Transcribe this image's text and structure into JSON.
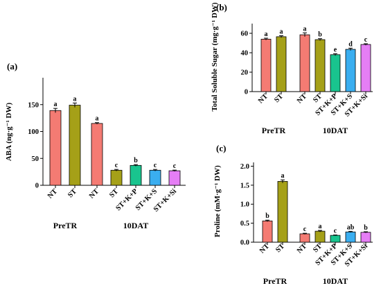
{
  "chart_data": [
    {
      "type": "bar",
      "panel": "(a)",
      "ylabel": "ABA (ng·g⁻¹ DW)",
      "ylim": [
        0,
        200
      ],
      "yticks": [
        0,
        50,
        100,
        150
      ],
      "categories": [
        "NT",
        "ST",
        "NT",
        "ST",
        "ST+K+P",
        "ST+K+S",
        "ST+K+Si"
      ],
      "values": [
        139,
        149,
        115,
        28,
        37,
        28,
        27
      ],
      "errors": [
        4,
        4,
        1.5,
        1.5,
        1.5,
        1.5,
        1.2
      ],
      "letters": [
        "a",
        "a",
        "a",
        "c",
        "b",
        "c",
        "c"
      ],
      "colors": [
        "#f47b73",
        "#a5a018",
        "#f47b73",
        "#a5a018",
        "#19c48e",
        "#3aaef0",
        "#e57ef5"
      ],
      "groups": [
        {
          "label": "PreTR",
          "indices": [
            0,
            1
          ]
        },
        {
          "label": "10DAT",
          "indices": [
            2,
            3,
            4,
            5,
            6
          ]
        }
      ]
    },
    {
      "type": "bar",
      "panel": "(b)",
      "ylabel": "Total Soluble Sugar (mg·g⁻¹ DW)",
      "ylim": [
        0,
        70
      ],
      "yticks": [
        0,
        20,
        40,
        60
      ],
      "categories": [
        "NT",
        "ST",
        "NT",
        "ST",
        "ST+K+P",
        "ST+K+S",
        "ST+K+Si"
      ],
      "values": [
        54,
        56.5,
        58.5,
        53.5,
        38,
        43.5,
        48.5
      ],
      "errors": [
        1,
        1,
        2,
        1,
        1,
        1.2,
        0.8
      ],
      "letters": [
        "a",
        "a",
        "a",
        "b",
        "e",
        "d",
        "c"
      ],
      "colors": [
        "#f47b73",
        "#a5a018",
        "#f47b73",
        "#a5a018",
        "#19c48e",
        "#3aaef0",
        "#e57ef5"
      ],
      "groups": [
        {
          "label": "PreTR",
          "indices": [
            0,
            1
          ]
        },
        {
          "label": "10DAT",
          "indices": [
            2,
            3,
            4,
            5,
            6
          ]
        }
      ]
    },
    {
      "type": "bar",
      "panel": "(c)",
      "ylabel": "Proline (mM·g⁻¹ DW)",
      "ylim": [
        0,
        2.1
      ],
      "yticks": [
        0.0,
        0.5,
        1.0,
        1.5,
        2.0
      ],
      "ytick_labels": [
        "0.0",
        "0.5",
        "1.0",
        "1.5",
        "2.0"
      ],
      "categories": [
        "NT",
        "ST",
        "NT",
        "ST",
        "ST+K+P",
        "ST+K+S",
        "ST+K+Si"
      ],
      "values": [
        0.56,
        1.6,
        0.22,
        0.29,
        0.18,
        0.27,
        0.26
      ],
      "errors": [
        0.02,
        0.04,
        0.015,
        0.02,
        0.01,
        0.015,
        0.015
      ],
      "letters": [
        "b",
        "a",
        "c",
        "a",
        "c",
        "ab",
        "b"
      ],
      "colors": [
        "#f47b73",
        "#a5a018",
        "#f47b73",
        "#a5a018",
        "#19c48e",
        "#3aaef0",
        "#e57ef5"
      ],
      "groups": [
        {
          "label": "PreTR",
          "indices": [
            0,
            1
          ]
        },
        {
          "label": "10DAT",
          "indices": [
            2,
            3,
            4,
            5,
            6
          ]
        }
      ]
    }
  ]
}
